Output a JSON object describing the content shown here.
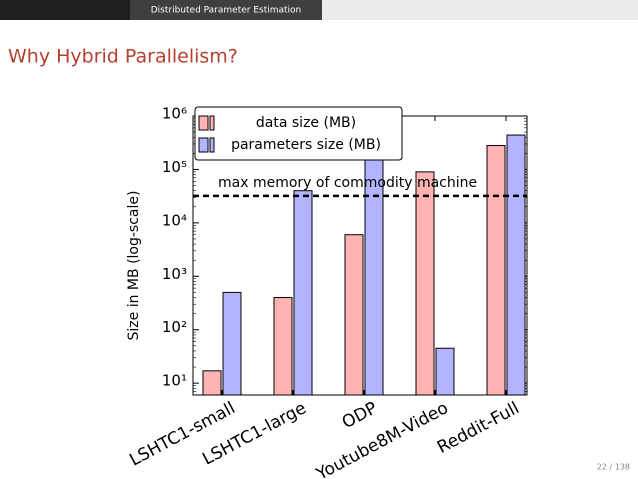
{
  "header": {
    "section": "Distributed Parameter Estimation"
  },
  "title": "Why Hybrid Parallelism?",
  "chart_data": {
    "type": "bar",
    "ylabel": "Size in MB (log-scale)",
    "log_y": true,
    "categories": [
      "LSHTC1-small",
      "LSHTC1-large",
      "ODP",
      "Youtube8M-Video",
      "Reddit-Full"
    ],
    "series": [
      {
        "name": "data size (MB)",
        "color": "#ffb3b3",
        "values": [
          17,
          400,
          6000,
          90000,
          280000
        ]
      },
      {
        "name": "parameters size (MB)",
        "color": "#b3b3ff",
        "values": [
          500,
          40000,
          200000,
          45,
          440000
        ]
      }
    ],
    "ylim": [
      6,
      1000000
    ],
    "yticks": [
      {
        "value": 10,
        "label": "10¹"
      },
      {
        "value": 100,
        "label": "10²"
      },
      {
        "value": 1000,
        "label": "10³"
      },
      {
        "value": 10000,
        "label": "10⁴"
      },
      {
        "value": 100000,
        "label": "10⁵"
      },
      {
        "value": 1000000,
        "label": "10⁶"
      }
    ],
    "hline": {
      "value": 32000,
      "label": "max memory of commodity machine"
    },
    "legend": "upper left"
  },
  "footer": {
    "page": "22 / 138"
  }
}
